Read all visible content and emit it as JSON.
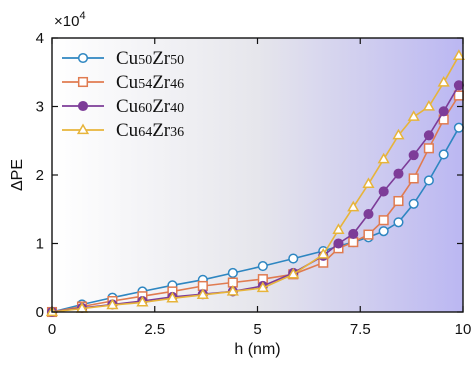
{
  "chart_data": {
    "type": "line",
    "title": "",
    "xlabel": "h (nm)",
    "ylabel": "ΔPE",
    "y_multiplier": "×10",
    "y_multiplier_exp": "4",
    "xlim": [
      0,
      10
    ],
    "ylim": [
      0,
      40000
    ],
    "xticks": [
      0,
      2.5,
      5,
      7.5,
      10
    ],
    "xtick_labels": [
      "0",
      "2.5",
      "5",
      "7.5",
      "10"
    ],
    "yticks": [
      0,
      10000,
      20000,
      30000,
      40000
    ],
    "ytick_labels": [
      "0",
      "1",
      "2",
      "3",
      "4"
    ],
    "grid": false,
    "legend_position": "top-left",
    "background": "gradient white to lavender",
    "series": [
      {
        "name": "Cu50Zr50",
        "name_parts": [
          [
            "Cu",
            "50"
          ],
          [
            "Zr",
            "50"
          ]
        ],
        "color": "#2E86C1",
        "marker": "circle-open",
        "x": [
          0,
          0.73,
          1.47,
          2.2,
          2.93,
          3.67,
          4.4,
          5.13,
          5.87,
          6.6,
          6.97,
          7.33,
          7.7,
          8.07,
          8.43,
          8.8,
          9.17,
          9.53,
          9.9
        ],
        "y": [
          0,
          1100,
          2100,
          3000,
          3900,
          4700,
          5700,
          6700,
          7800,
          8900,
          9600,
          10200,
          10900,
          11800,
          13100,
          15800,
          19200,
          23000,
          26900
        ]
      },
      {
        "name": "Cu54Zr46",
        "name_parts": [
          [
            "Cu",
            "54"
          ],
          [
            "Zr",
            "46"
          ]
        ],
        "color": "#E07B50",
        "marker": "square-open",
        "x": [
          0,
          0.73,
          1.47,
          2.2,
          2.93,
          3.67,
          4.4,
          5.13,
          5.87,
          6.6,
          6.97,
          7.33,
          7.7,
          8.07,
          8.43,
          8.8,
          9.17,
          9.53,
          9.9
        ],
        "y": [
          0,
          800,
          1600,
          2300,
          3000,
          3800,
          4300,
          4800,
          5500,
          7200,
          9300,
          10200,
          11300,
          13400,
          16200,
          19500,
          23900,
          28100,
          31600
        ]
      },
      {
        "name": "Cu60Zr40",
        "name_parts": [
          [
            "Cu",
            "60"
          ],
          [
            "Zr",
            "40"
          ]
        ],
        "color": "#7D3C98",
        "marker": "circle-filled",
        "x": [
          0,
          0.73,
          1.47,
          2.2,
          2.93,
          3.67,
          4.4,
          5.13,
          5.87,
          6.6,
          6.97,
          7.33,
          7.7,
          8.07,
          8.43,
          8.8,
          9.17,
          9.53,
          9.9
        ],
        "y": [
          0,
          600,
          1100,
          1600,
          2200,
          2600,
          3000,
          3800,
          5700,
          8200,
          10000,
          11400,
          14300,
          17600,
          20200,
          22900,
          25800,
          29300,
          33100
        ]
      },
      {
        "name": "Cu64Zr36",
        "name_parts": [
          [
            "Cu",
            "64"
          ],
          [
            "Zr",
            "36"
          ]
        ],
        "color": "#E7B43A",
        "marker": "triangle-open",
        "x": [
          0,
          0.73,
          1.47,
          2.2,
          2.93,
          3.67,
          4.4,
          5.13,
          5.87,
          6.6,
          6.97,
          7.33,
          7.7,
          8.07,
          8.43,
          8.8,
          9.17,
          9.53,
          9.9
        ],
        "y": [
          0,
          500,
          1000,
          1400,
          2000,
          2500,
          3000,
          3500,
          5500,
          8400,
          12000,
          15300,
          18700,
          22300,
          25800,
          28500,
          30000,
          33500,
          37400
        ]
      }
    ]
  }
}
